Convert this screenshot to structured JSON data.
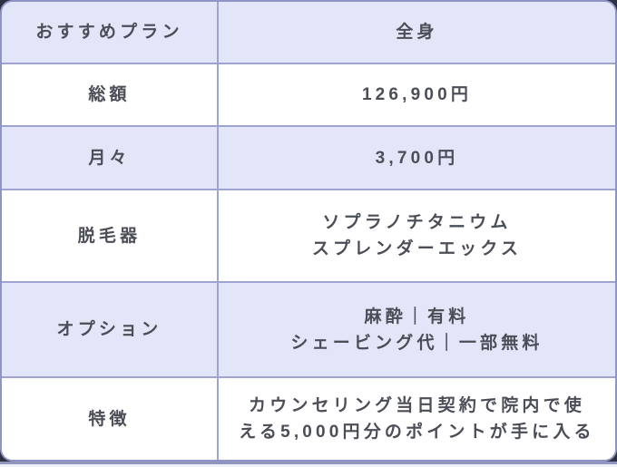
{
  "colors": {
    "backdrop": "#2E3142",
    "card_background": "#FFFFFF",
    "card_border": "#8F94C6",
    "grid_line": "#9EA3D0",
    "shaded_row_background": "#E3E6F8",
    "text": "#4B4D57",
    "bottom_rule": "#9196C0"
  },
  "table": {
    "rows": [
      {
        "label": "おすすめプラン",
        "value": "全身",
        "lines": [
          "全身"
        ],
        "shaded": true
      },
      {
        "label": "総額",
        "value": "126,900円",
        "lines": [
          "126,900円"
        ],
        "shaded": false
      },
      {
        "label": "月々",
        "value": "3,700円",
        "lines": [
          "3,700円"
        ],
        "shaded": true
      },
      {
        "label": "脱毛器",
        "value": "ソプラノチタニウム スプレンダーエックス",
        "lines": [
          "ソプラノチタニウム",
          "スプレンダーエックス"
        ],
        "shaded": false
      },
      {
        "label": "オプション",
        "value": "麻酔｜有料 シェービング代｜一部無料",
        "lines": [
          "麻酔｜有料",
          "シェービング代｜一部無料"
        ],
        "shaded": true
      },
      {
        "label": "特徴",
        "value": "カウンセリング当日契約で院内で使える5,000円分のポイントが手に入る",
        "lines": [
          "カウンセリング当日契約で院内で使",
          "える5,000円分のポイントが手に入る"
        ],
        "shaded": false
      }
    ]
  }
}
